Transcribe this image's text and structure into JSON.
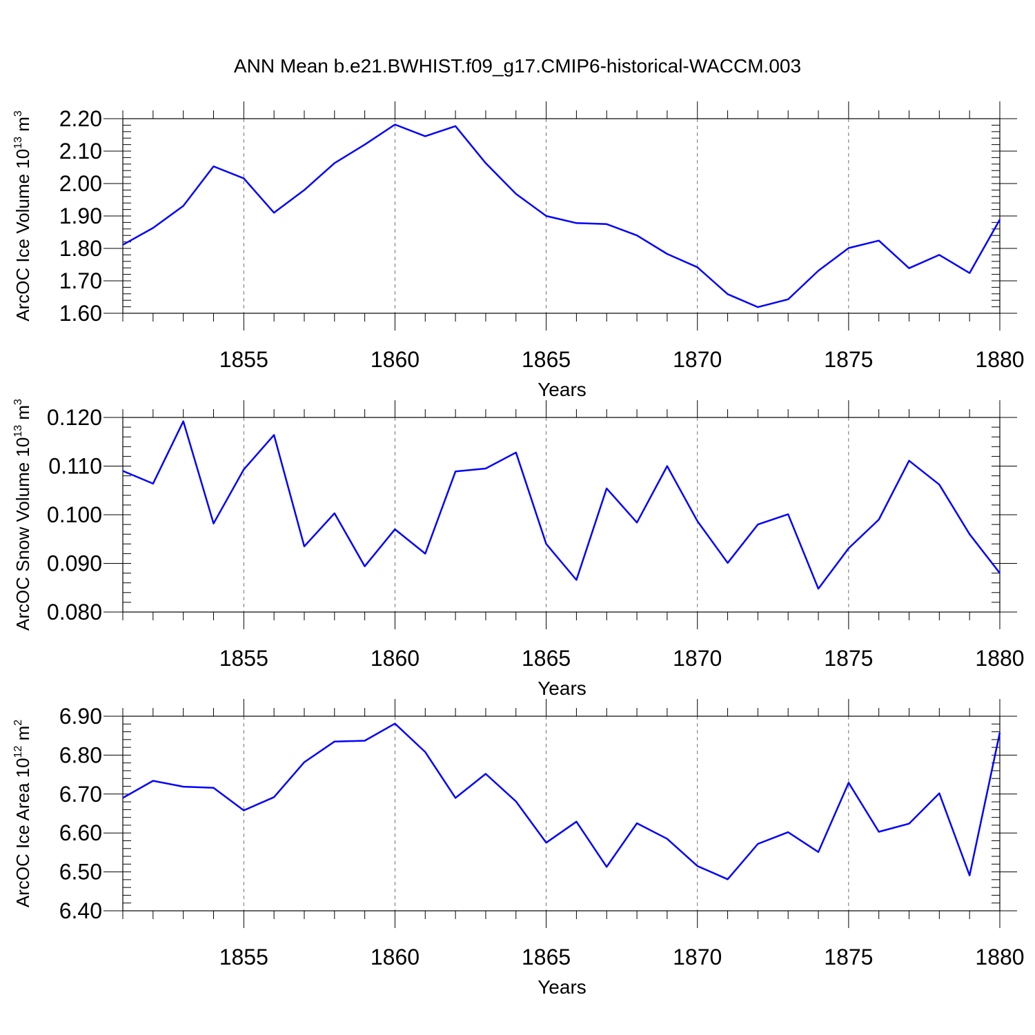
{
  "title": "ANN Mean b.e21.BWHIST.f09_g17.CMIP6-historical-WACCM.003",
  "line_color": "#0000ff",
  "chart_data": [
    {
      "type": "line",
      "ylabel": "ArcOC Ice Volume 10",
      "ylabel_exp": "13",
      "ylabel_unit": " m",
      "ylabel_unit_exp": "3",
      "xlabel": "Years",
      "xlim": [
        1851,
        1880
      ],
      "ylim": [
        1.6,
        2.2
      ],
      "yticks": [
        1.6,
        1.7,
        1.8,
        1.9,
        2.0,
        2.1,
        2.2
      ],
      "ytick_labels": [
        "1.60",
        "1.70",
        "1.80",
        "1.90",
        "2.00",
        "2.10",
        "2.20"
      ],
      "ystep_minor": 0.02,
      "xticks": [
        1855,
        1860,
        1865,
        1870,
        1875,
        1880
      ],
      "xtick_labels": [
        "1855",
        "1860",
        "1865",
        "1870",
        "1875",
        "1880"
      ],
      "grid": "dashed vertical lines at major x ticks",
      "x": [
        1851,
        1852,
        1853,
        1854,
        1855,
        1856,
        1857,
        1858,
        1859,
        1860,
        1861,
        1862,
        1863,
        1864,
        1865,
        1866,
        1867,
        1868,
        1869,
        1870,
        1871,
        1872,
        1873,
        1874,
        1875,
        1876,
        1877,
        1878,
        1879,
        1880
      ],
      "series": [
        {
          "values": [
            1.811,
            1.863,
            1.931,
            2.053,
            2.016,
            1.91,
            1.98,
            2.063,
            2.12,
            2.182,
            2.146,
            2.177,
            2.063,
            1.968,
            1.9,
            1.878,
            1.875,
            1.84,
            1.783,
            1.742,
            1.659,
            1.619,
            1.643,
            1.731,
            1.801,
            1.824,
            1.739,
            1.78,
            1.724,
            1.889
          ]
        }
      ]
    },
    {
      "type": "line",
      "ylabel": "ArcOC Snow Volume 10",
      "ylabel_exp": "13",
      "ylabel_unit": " m",
      "ylabel_unit_exp": "3",
      "xlabel": "Years",
      "xlim": [
        1851,
        1880
      ],
      "ylim": [
        0.08,
        0.12
      ],
      "yticks": [
        0.08,
        0.09,
        0.1,
        0.11,
        0.12
      ],
      "ytick_labels": [
        "0.080",
        "0.090",
        "0.100",
        "0.110",
        "0.120"
      ],
      "ystep_minor": 0.002,
      "xticks": [
        1855,
        1860,
        1865,
        1870,
        1875,
        1880
      ],
      "xtick_labels": [
        "1855",
        "1860",
        "1865",
        "1870",
        "1875",
        "1880"
      ],
      "grid": "dashed vertical lines at major x ticks",
      "x": [
        1851,
        1852,
        1853,
        1854,
        1855,
        1856,
        1857,
        1858,
        1859,
        1860,
        1861,
        1862,
        1863,
        1864,
        1865,
        1866,
        1867,
        1868,
        1869,
        1870,
        1871,
        1872,
        1873,
        1874,
        1875,
        1876,
        1877,
        1878,
        1879,
        1880
      ],
      "series": [
        {
          "values": [
            0.109,
            0.1064,
            0.1192,
            0.0982,
            0.1093,
            0.1164,
            0.0935,
            0.1003,
            0.0894,
            0.097,
            0.092,
            0.1089,
            0.1095,
            0.1128,
            0.094,
            0.0866,
            0.1054,
            0.0984,
            0.11,
            0.0987,
            0.0901,
            0.098,
            0.1001,
            0.0848,
            0.0931,
            0.099,
            0.1111,
            0.1062,
            0.096,
            0.088
          ]
        }
      ]
    },
    {
      "type": "line",
      "ylabel": "ArcOC Ice Area 10",
      "ylabel_exp": "12",
      "ylabel_unit": " m",
      "ylabel_unit_exp": "2",
      "xlabel": "Years",
      "xlim": [
        1851,
        1880
      ],
      "ylim": [
        6.4,
        6.9
      ],
      "yticks": [
        6.4,
        6.5,
        6.6,
        6.7,
        6.8,
        6.9
      ],
      "ytick_labels": [
        "6.40",
        "6.50",
        "6.60",
        "6.70",
        "6.80",
        "6.90"
      ],
      "ystep_minor": 0.02,
      "xticks": [
        1855,
        1860,
        1865,
        1870,
        1875,
        1880
      ],
      "xtick_labels": [
        "1855",
        "1860",
        "1865",
        "1870",
        "1875",
        "1880"
      ],
      "grid": "dashed vertical lines at major x ticks",
      "x": [
        1851,
        1852,
        1853,
        1854,
        1855,
        1856,
        1857,
        1858,
        1859,
        1860,
        1861,
        1862,
        1863,
        1864,
        1865,
        1866,
        1867,
        1868,
        1869,
        1870,
        1871,
        1872,
        1873,
        1874,
        1875,
        1876,
        1877,
        1878,
        1879,
        1880
      ],
      "series": [
        {
          "values": [
            6.69,
            6.734,
            6.719,
            6.716,
            6.658,
            6.692,
            6.782,
            6.835,
            6.837,
            6.881,
            6.808,
            6.69,
            6.752,
            6.681,
            6.575,
            6.629,
            6.513,
            6.625,
            6.585,
            6.515,
            6.481,
            6.572,
            6.602,
            6.551,
            6.729,
            6.603,
            6.624,
            6.702,
            6.491,
            6.858
          ]
        }
      ]
    }
  ]
}
